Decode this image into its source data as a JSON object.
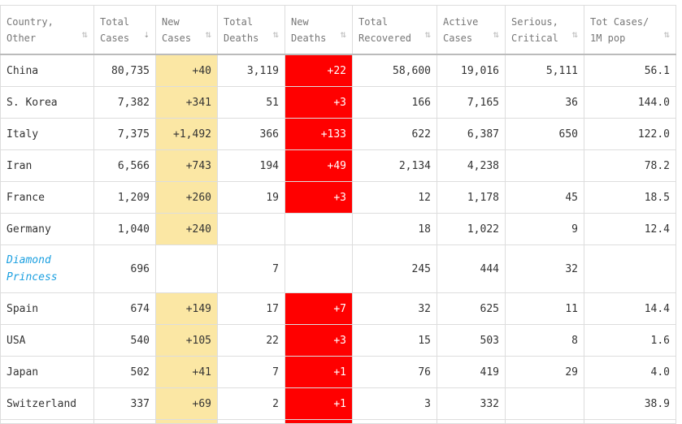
{
  "colors": {
    "new_cases_bg": "#fbe7a4",
    "new_deaths_bg": "#ff0000",
    "special_country": "#1a9fe0"
  },
  "headers": [
    {
      "line1": "Country,",
      "line2": "Other",
      "sort": "both"
    },
    {
      "line1": "Total",
      "line2": "Cases",
      "sort": "desc"
    },
    {
      "line1": "New",
      "line2": "Cases",
      "sort": "both"
    },
    {
      "line1": "Total",
      "line2": "Deaths",
      "sort": "both"
    },
    {
      "line1": "New",
      "line2": "Deaths",
      "sort": "both"
    },
    {
      "line1": "Total",
      "line2": "Recovered",
      "sort": "both"
    },
    {
      "line1": "Active",
      "line2": "Cases",
      "sort": "both"
    },
    {
      "line1": "Serious,",
      "line2": "Critical",
      "sort": "both"
    },
    {
      "line1": "Tot Cases/",
      "line2": "1M pop",
      "sort": "both"
    }
  ],
  "sort_icons": {
    "both": "⇅",
    "desc": "⇣"
  },
  "rows": [
    {
      "country": "China",
      "total_cases": "80,735",
      "new_cases": "+40",
      "total_deaths": "3,119",
      "new_deaths": "+22",
      "total_recovered": "58,600",
      "active_cases": "19,016",
      "serious_critical": "5,111",
      "cases_per_1m": "56.1",
      "special": false
    },
    {
      "country": "S. Korea",
      "total_cases": "7,382",
      "new_cases": "+341",
      "total_deaths": "51",
      "new_deaths": "+3",
      "total_recovered": "166",
      "active_cases": "7,165",
      "serious_critical": "36",
      "cases_per_1m": "144.0",
      "special": false
    },
    {
      "country": "Italy",
      "total_cases": "7,375",
      "new_cases": "+1,492",
      "total_deaths": "366",
      "new_deaths": "+133",
      "total_recovered": "622",
      "active_cases": "6,387",
      "serious_critical": "650",
      "cases_per_1m": "122.0",
      "special": false
    },
    {
      "country": "Iran",
      "total_cases": "6,566",
      "new_cases": "+743",
      "total_deaths": "194",
      "new_deaths": "+49",
      "total_recovered": "2,134",
      "active_cases": "4,238",
      "serious_critical": "",
      "cases_per_1m": "78.2",
      "special": false
    },
    {
      "country": "France",
      "total_cases": "1,209",
      "new_cases": "+260",
      "total_deaths": "19",
      "new_deaths": "+3",
      "total_recovered": "12",
      "active_cases": "1,178",
      "serious_critical": "45",
      "cases_per_1m": "18.5",
      "special": false
    },
    {
      "country": "Germany",
      "total_cases": "1,040",
      "new_cases": "+240",
      "total_deaths": "",
      "new_deaths": "",
      "total_recovered": "18",
      "active_cases": "1,022",
      "serious_critical": "9",
      "cases_per_1m": "12.4",
      "special": false
    },
    {
      "country": "Diamond Princess",
      "total_cases": "696",
      "new_cases": "",
      "total_deaths": "7",
      "new_deaths": "",
      "total_recovered": "245",
      "active_cases": "444",
      "serious_critical": "32",
      "cases_per_1m": "",
      "special": true
    },
    {
      "country": "Spain",
      "total_cases": "674",
      "new_cases": "+149",
      "total_deaths": "17",
      "new_deaths": "+7",
      "total_recovered": "32",
      "active_cases": "625",
      "serious_critical": "11",
      "cases_per_1m": "14.4",
      "special": false
    },
    {
      "country": "USA",
      "total_cases": "540",
      "new_cases": "+105",
      "total_deaths": "22",
      "new_deaths": "+3",
      "total_recovered": "15",
      "active_cases": "503",
      "serious_critical": "8",
      "cases_per_1m": "1.6",
      "special": false
    },
    {
      "country": "Japan",
      "total_cases": "502",
      "new_cases": "+41",
      "total_deaths": "7",
      "new_deaths": "+1",
      "total_recovered": "76",
      "active_cases": "419",
      "serious_critical": "29",
      "cases_per_1m": "4.0",
      "special": false
    },
    {
      "country": "Switzerland",
      "total_cases": "337",
      "new_cases": "+69",
      "total_deaths": "2",
      "new_deaths": "+1",
      "total_recovered": "3",
      "active_cases": "332",
      "serious_critical": "",
      "cases_per_1m": "38.9",
      "special": false
    },
    {
      "country": "",
      "total_cases": "",
      "new_cases": "+",
      "total_deaths": "",
      "new_deaths": "+",
      "total_recovered": "",
      "active_cases": "",
      "serious_critical": "",
      "cases_per_1m": "",
      "special": false
    }
  ]
}
